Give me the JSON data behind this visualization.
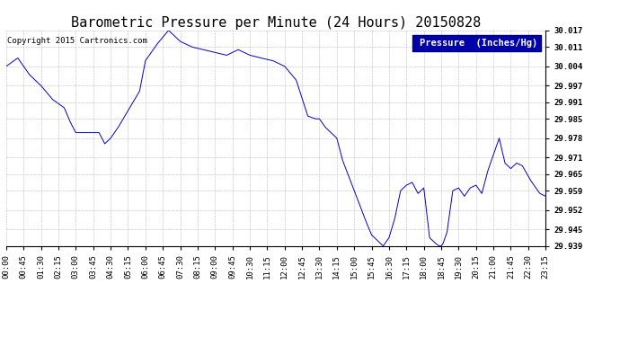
{
  "title": "Barometric Pressure per Minute (24 Hours) 20150828",
  "copyright": "Copyright 2015 Cartronics.com",
  "legend_label": "Pressure  (Inches/Hg)",
  "line_color": "#0000cc",
  "background_color": "#ffffff",
  "plot_bg_color": "#ffffff",
  "grid_color": "#aaaaaa",
  "ylim": [
    29.939,
    30.017
  ],
  "yticks": [
    29.939,
    29.945,
    29.952,
    29.959,
    29.965,
    29.971,
    29.978,
    29.985,
    29.991,
    29.997,
    30.004,
    30.011,
    30.017
  ],
  "xtick_labels": [
    "00:00",
    "00:45",
    "01:30",
    "02:15",
    "03:00",
    "03:45",
    "04:30",
    "05:15",
    "06:00",
    "06:45",
    "07:30",
    "08:15",
    "09:00",
    "09:45",
    "10:30",
    "11:15",
    "12:00",
    "12:45",
    "13:30",
    "14:15",
    "15:00",
    "15:45",
    "16:30",
    "17:15",
    "18:00",
    "18:45",
    "19:30",
    "20:15",
    "21:00",
    "21:45",
    "22:30",
    "23:15"
  ],
  "title_fontsize": 11,
  "tick_fontsize": 6.5,
  "legend_fontsize": 7.5,
  "copyright_fontsize": 6.5,
  "key_x": [
    0,
    30,
    60,
    90,
    120,
    150,
    165,
    180,
    210,
    240,
    255,
    270,
    290,
    315,
    345,
    360,
    390,
    420,
    450,
    480,
    510,
    540,
    570,
    600,
    630,
    660,
    690,
    720,
    750,
    780,
    800,
    810,
    825,
    840,
    855,
    870,
    900,
    930,
    945,
    960,
    975,
    990,
    1005,
    1020,
    1035,
    1050,
    1065,
    1080,
    1095,
    1110,
    1120,
    1125,
    1130,
    1140,
    1155,
    1170,
    1185,
    1200,
    1215,
    1230,
    1245,
    1260,
    1275,
    1290,
    1305,
    1320,
    1335,
    1355,
    1380,
    1395,
    1410,
    1420,
    1435
  ],
  "key_y": [
    30.004,
    30.007,
    30.001,
    29.997,
    29.992,
    29.989,
    29.984,
    29.98,
    29.98,
    29.98,
    29.976,
    29.978,
    29.982,
    29.988,
    29.995,
    30.006,
    30.012,
    30.017,
    30.013,
    30.011,
    30.01,
    30.009,
    30.008,
    30.01,
    30.008,
    30.007,
    30.006,
    30.004,
    29.999,
    29.986,
    29.985,
    29.985,
    29.982,
    29.98,
    29.978,
    29.97,
    29.959,
    29.948,
    29.943,
    29.941,
    29.939,
    29.942,
    29.949,
    29.959,
    29.961,
    29.962,
    29.958,
    29.96,
    29.942,
    29.94,
    29.939,
    29.939,
    29.94,
    29.944,
    29.959,
    29.96,
    29.957,
    29.96,
    29.961,
    29.958,
    29.966,
    29.972,
    29.978,
    29.969,
    29.967,
    29.969,
    29.968,
    29.963,
    29.958,
    29.957,
    29.956,
    29.957,
    29.956
  ]
}
